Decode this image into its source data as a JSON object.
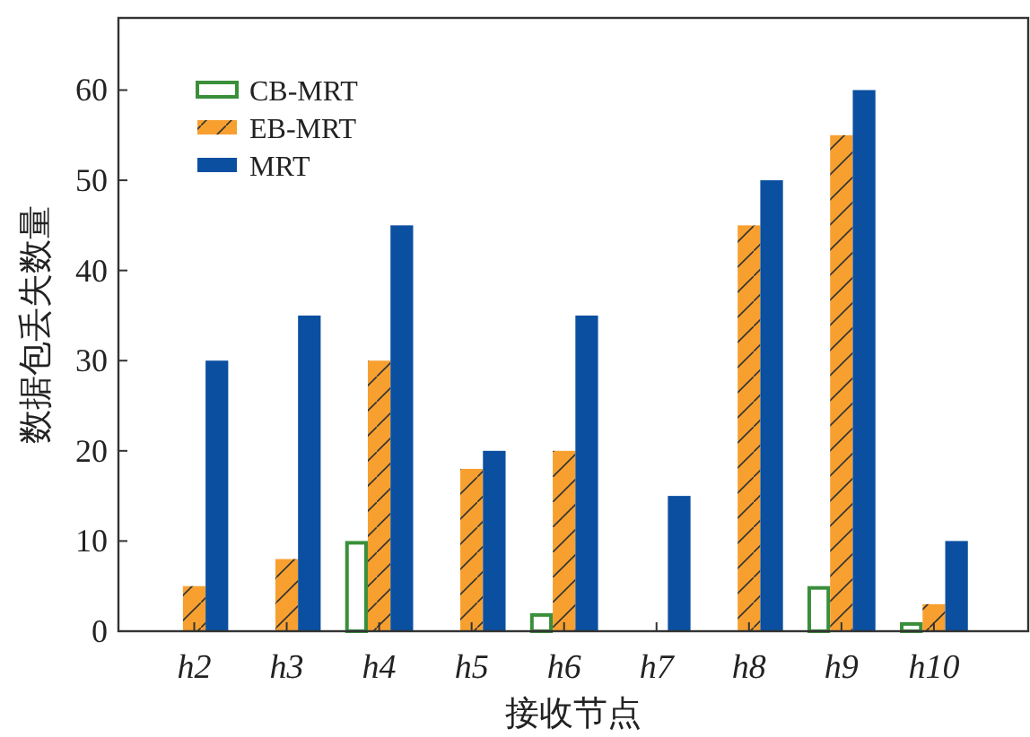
{
  "chart_data": {
    "type": "bar",
    "xlabel": "接收节点",
    "ylabel": "数据包丢失数量",
    "categories": [
      "h2",
      "h3",
      "h4",
      "h5",
      "h6",
      "h7",
      "h8",
      "h9",
      "h10"
    ],
    "series": [
      {
        "name": "CB-MRT",
        "color": "#3a8f3a",
        "values": [
          0,
          0,
          10,
          0,
          2,
          0,
          0,
          5,
          1
        ]
      },
      {
        "name": "EB-MRT",
        "color": "#f7a030",
        "values": [
          5,
          8,
          30,
          18,
          20,
          0,
          45,
          55,
          3
        ]
      },
      {
        "name": "MRT",
        "color": "#0b4fa0",
        "values": [
          30,
          35,
          45,
          20,
          35,
          15,
          50,
          60,
          10
        ]
      }
    ],
    "ylim": [
      0,
      68
    ],
    "yticks": [
      0,
      10,
      20,
      30,
      40,
      50,
      60
    ],
    "grid": false,
    "legend": "top left"
  }
}
